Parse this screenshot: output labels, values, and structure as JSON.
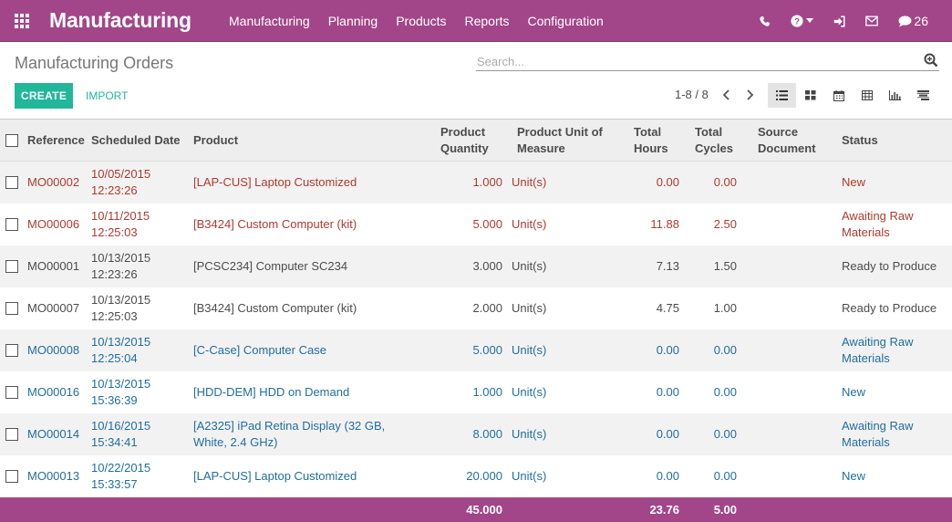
{
  "navbar": {
    "brand": "Manufacturing",
    "menu": [
      "Manufacturing",
      "Planning",
      "Products",
      "Reports",
      "Configuration"
    ],
    "message_count": "26",
    "accent_color": "#a24689"
  },
  "control_panel": {
    "breadcrumb": "Manufacturing Orders",
    "search_placeholder": "Search...",
    "create_label": "CREATE",
    "import_label": "IMPORT",
    "pager": "1-8 / 8",
    "views": [
      "list-icon",
      "kanban-icon",
      "calendar-icon",
      "pivot-icon",
      "graph-icon",
      "gantt-icon"
    ],
    "active_view": "list"
  },
  "table": {
    "headers": {
      "reference": "Reference",
      "scheduled_date": "Scheduled Date",
      "product": "Product",
      "quantity_1": "Product",
      "quantity_2": "Quantity",
      "uom_1": "Product Unit of",
      "uom_2": "Measure",
      "hours_1": "Total",
      "hours_2": "Hours",
      "cycles_1": "Total",
      "cycles_2": "Cycles",
      "source_1": "Source",
      "source_2": "Document",
      "status": "Status"
    },
    "rows": [
      {
        "style": "red",
        "reference": "MO00002",
        "date": "10/05/2015",
        "time": "12:23:26",
        "product": "[LAP-CUS] Laptop Customized",
        "quantity": "1.000",
        "uom": "Unit(s)",
        "hours": "0.00",
        "cycles": "0.00",
        "source": "",
        "status": "New"
      },
      {
        "style": "red",
        "reference": "MO00006",
        "date": "10/11/2015",
        "time": "12:25:03",
        "product": "[B3424] Custom Computer (kit)",
        "quantity": "5.000",
        "uom": "Unit(s)",
        "hours": "11.88",
        "cycles": "2.50",
        "source": "",
        "status": "Awaiting Raw Materials"
      },
      {
        "style": "normal",
        "reference": "MO00001",
        "date": "10/13/2015",
        "time": "12:23:26",
        "product": "[PCSC234] Computer SC234",
        "quantity": "3.000",
        "uom": "Unit(s)",
        "hours": "7.13",
        "cycles": "1.50",
        "source": "",
        "status": "Ready to Produce"
      },
      {
        "style": "normal",
        "reference": "MO00007",
        "date": "10/13/2015",
        "time": "12:25:03",
        "product": "[B3424] Custom Computer (kit)",
        "quantity": "2.000",
        "uom": "Unit(s)",
        "hours": "4.75",
        "cycles": "1.00",
        "source": "",
        "status": "Ready to Produce"
      },
      {
        "style": "blue",
        "reference": "MO00008",
        "date": "10/13/2015",
        "time": "12:25:04",
        "product": "[C-Case] Computer Case",
        "quantity": "5.000",
        "uom": "Unit(s)",
        "hours": "0.00",
        "cycles": "0.00",
        "source": "",
        "status": "Awaiting Raw Materials"
      },
      {
        "style": "blue",
        "reference": "MO00016",
        "date": "10/13/2015",
        "time": "15:36:39",
        "product": "[HDD-DEM] HDD on Demand",
        "quantity": "1.000",
        "uom": "Unit(s)",
        "hours": "0.00",
        "cycles": "0.00",
        "source": "",
        "status": "New"
      },
      {
        "style": "blue",
        "reference": "MO00014",
        "date": "10/16/2015",
        "time": "15:34:41",
        "product": "[A2325] iPad Retina Display (32 GB, White, 2.4 GHz)",
        "quantity": "8.000",
        "uom": "Unit(s)",
        "hours": "0.00",
        "cycles": "0.00",
        "source": "",
        "status": "Awaiting Raw Materials"
      },
      {
        "style": "blue",
        "reference": "MO00013",
        "date": "10/22/2015",
        "time": "15:33:57",
        "product": "[LAP-CUS] Laptop Customized",
        "quantity": "20.000",
        "uom": "Unit(s)",
        "hours": "0.00",
        "cycles": "0.00",
        "source": "",
        "status": "New"
      }
    ],
    "totals": {
      "quantity": "45.000",
      "hours": "23.76",
      "cycles": "5.00"
    }
  }
}
